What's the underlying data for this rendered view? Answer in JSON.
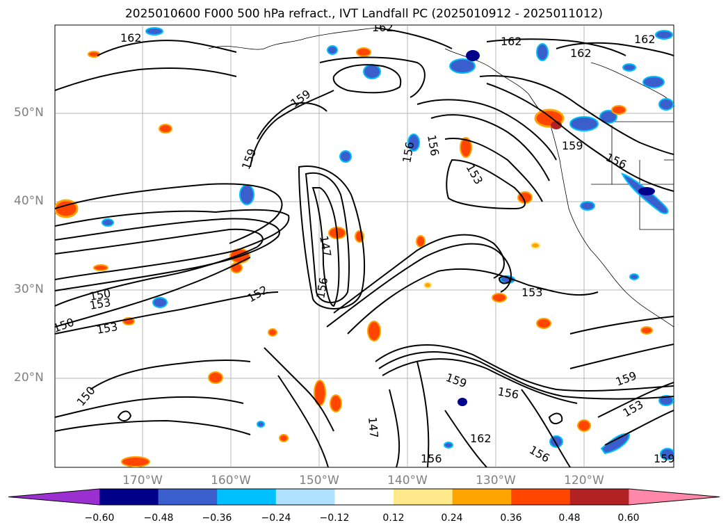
{
  "title": "2025010600 F000 500 hPa refract., IVT Landfall PC (2025010912 - 2025011012)",
  "map": {
    "lat_labels": [
      "50°N",
      "40°N",
      "30°N",
      "20°N"
    ],
    "lon_labels": [
      "170°W",
      "160°W",
      "150°W",
      "140°W",
      "130°W",
      "120°W"
    ],
    "contour_labels": [
      "162",
      "162",
      "162",
      "162",
      "162",
      "162",
      "159",
      "159",
      "159",
      "159",
      "159",
      "159",
      "156",
      "156",
      "156",
      "156",
      "156",
      "156",
      "156",
      "153",
      "153",
      "153",
      "153",
      "153",
      "152",
      "150",
      "150",
      "150",
      "147",
      "147"
    ],
    "gridlines": true
  },
  "colorbar": {
    "colors": [
      "#9b30d0",
      "#00008b",
      "#3a5fcd",
      "#00bfff",
      "#b0e2ff",
      "#ffffff",
      "#ffe98a",
      "#ffa500",
      "#ff4500",
      "#b22222",
      "#ff88aa"
    ],
    "tick_labels": [
      "−0.60",
      "−0.48",
      "−0.36",
      "−0.24",
      "−0.12",
      "0.12",
      "0.24",
      "0.36",
      "0.48",
      "0.60"
    ],
    "extend": "both"
  }
}
